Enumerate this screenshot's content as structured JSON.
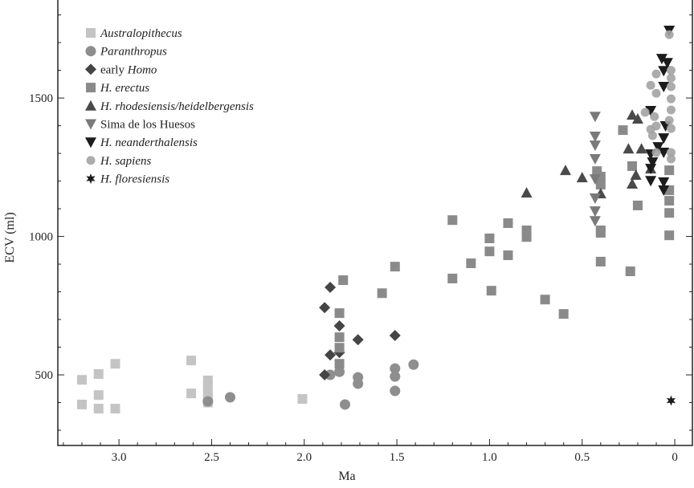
{
  "chart_data": {
    "type": "scatter",
    "title": "",
    "xlabel": "Ma",
    "ylabel": "ECV (ml)",
    "xlim": [
      3.33,
      -0.095
    ],
    "ylim": [
      245,
      1854
    ],
    "x_reversed": true,
    "x_ticks": [
      "3.0",
      "2.5",
      "2.0",
      "1.5",
      "1.0",
      "0.5",
      "0"
    ],
    "x_tick_values": [
      3.0,
      2.5,
      2.0,
      1.5,
      1.0,
      0.5,
      0
    ],
    "y_ticks": [
      "500",
      "1000",
      "1500"
    ],
    "y_tick_values": [
      500,
      1000,
      1500
    ],
    "grid": false,
    "legend_position": "top-left",
    "series": [
      {
        "name": "Australopithecus",
        "name_style": "italic",
        "marker": "square",
        "color": "#c4c4c4",
        "points": [
          [
            3.2,
            482
          ],
          [
            3.2,
            393
          ],
          [
            3.11,
            503
          ],
          [
            3.11,
            427
          ],
          [
            3.11,
            378
          ],
          [
            3.02,
            540
          ],
          [
            3.02,
            378
          ],
          [
            2.61,
            552
          ],
          [
            2.61,
            433
          ],
          [
            2.52,
            480
          ],
          [
            2.52,
            460
          ],
          [
            2.52,
            440
          ],
          [
            2.52,
            420
          ],
          [
            2.52,
            400
          ],
          [
            2.01,
            413
          ]
        ]
      },
      {
        "name": "Paranthropus",
        "name_style": "italic",
        "marker": "circle",
        "color": "#8e8e8e",
        "points": [
          [
            2.52,
            404
          ],
          [
            2.4,
            419
          ],
          [
            1.86,
            500
          ],
          [
            1.81,
            511
          ],
          [
            1.71,
            491
          ],
          [
            1.71,
            468
          ],
          [
            1.51,
            523
          ],
          [
            1.51,
            494
          ],
          [
            1.51,
            442
          ],
          [
            1.41,
            537
          ],
          [
            1.78,
            393
          ]
        ]
      },
      {
        "name": "early Homo",
        "name_style": "roman-italic",
        "marker": "diamond",
        "color": "#454545",
        "points": [
          [
            1.86,
            816
          ],
          [
            1.89,
            743
          ],
          [
            1.81,
            677
          ],
          [
            1.71,
            627
          ],
          [
            1.51,
            642
          ],
          [
            1.86,
            572
          ],
          [
            1.81,
            581
          ],
          [
            1.89,
            500
          ]
        ]
      },
      {
        "name": "H. erectus",
        "name_style": "italic",
        "marker": "square",
        "color": "#8a8a8a",
        "points": [
          [
            1.79,
            842
          ],
          [
            1.81,
            723
          ],
          [
            1.81,
            636
          ],
          [
            1.81,
            598
          ],
          [
            1.81,
            540
          ],
          [
            1.58,
            795
          ],
          [
            1.51,
            891
          ],
          [
            1.2,
            1059
          ],
          [
            1.2,
            848
          ],
          [
            1.1,
            903
          ],
          [
            1.0,
            993
          ],
          [
            1.0,
            946
          ],
          [
            0.99,
            804
          ],
          [
            0.9,
            1048
          ],
          [
            0.9,
            932
          ],
          [
            0.8,
            1022
          ],
          [
            0.8,
            998
          ],
          [
            0.7,
            772
          ],
          [
            0.6,
            720
          ],
          [
            0.28,
            1384
          ],
          [
            0.42,
            1236
          ],
          [
            0.4,
            1216
          ],
          [
            0.4,
            1187
          ],
          [
            0.4,
            1022
          ],
          [
            0.4,
            1013
          ],
          [
            0.4,
            909
          ],
          [
            0.23,
            1254
          ],
          [
            0.2,
            1112
          ],
          [
            0.24,
            874
          ],
          [
            0.03,
            1239
          ],
          [
            0.03,
            1167
          ],
          [
            0.03,
            1129
          ],
          [
            0.03,
            1085
          ],
          [
            0.03,
            1004
          ]
        ]
      },
      {
        "name": "H. rhodesiensis/heidelbergensis",
        "name_style": "italic",
        "marker": "triangle-up",
        "color": "#4a4a4a",
        "points": [
          [
            0.8,
            1158
          ],
          [
            0.59,
            1239
          ],
          [
            0.5,
            1213
          ],
          [
            0.4,
            1155
          ],
          [
            0.23,
            1439
          ],
          [
            0.2,
            1425
          ],
          [
            0.25,
            1317
          ],
          [
            0.18,
            1317
          ],
          [
            0.21,
            1222
          ],
          [
            0.23,
            1190
          ],
          [
            0.13,
            1245
          ]
        ]
      },
      {
        "name": "Sima de los Huesos",
        "name_style": "roman",
        "marker": "triangle-down",
        "color": "#7a7a7a",
        "points": [
          [
            0.43,
            1433
          ],
          [
            0.43,
            1361
          ],
          [
            0.43,
            1329
          ],
          [
            0.43,
            1280
          ],
          [
            0.43,
            1207
          ],
          [
            0.43,
            1138
          ],
          [
            0.43,
            1091
          ],
          [
            0.43,
            1056
          ]
        ]
      },
      {
        "name": "H. neanderthalensis",
        "name_style": "italic",
        "marker": "triangle-down",
        "color": "#1c1c1c",
        "points": [
          [
            0.03,
            1744
          ],
          [
            0.07,
            1642
          ],
          [
            0.04,
            1627
          ],
          [
            0.06,
            1598
          ],
          [
            0.06,
            1541
          ],
          [
            0.13,
            1454
          ],
          [
            0.05,
            1399
          ],
          [
            0.06,
            1355
          ],
          [
            0.09,
            1323
          ],
          [
            0.06,
            1303
          ],
          [
            0.13,
            1297
          ],
          [
            0.12,
            1268
          ],
          [
            0.13,
            1245
          ],
          [
            0.13,
            1201
          ],
          [
            0.06,
            1196
          ],
          [
            0.06,
            1167
          ]
        ]
      },
      {
        "name": "H. sapiens",
        "name_style": "italic",
        "marker": "circle-small",
        "color": "#a3a3a3",
        "points": [
          [
            0.03,
            1729
          ],
          [
            0.02,
            1600
          ],
          [
            0.1,
            1587
          ],
          [
            0.13,
            1546
          ],
          [
            0.1,
            1517
          ],
          [
            0.02,
            1572
          ],
          [
            0.02,
            1541
          ],
          [
            0.02,
            1497
          ],
          [
            0.02,
            1457
          ],
          [
            0.16,
            1448
          ],
          [
            0.11,
            1433
          ],
          [
            0.03,
            1419
          ],
          [
            0.13,
            1387
          ],
          [
            0.1,
            1399
          ],
          [
            0.02,
            1390
          ],
          [
            0.12,
            1364
          ],
          [
            0.02,
            1303
          ],
          [
            0.02,
            1280
          ],
          [
            0.1,
            1303
          ]
        ]
      },
      {
        "name": "H. floresiensis",
        "name_style": "italic",
        "marker": "star",
        "color": "#1c1c1c",
        "points": [
          [
            0.02,
            407
          ]
        ]
      }
    ]
  }
}
